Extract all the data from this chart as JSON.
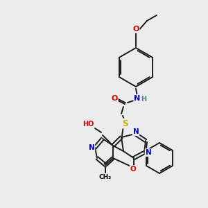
{
  "bg_color": "#ececec",
  "atom_colors": {
    "C": "#000000",
    "N": "#0000cc",
    "O": "#cc0000",
    "S": "#ccaa00",
    "H": "#4a8a8a"
  },
  "bond_color": "#1a1a1a",
  "lw": 1.4
}
